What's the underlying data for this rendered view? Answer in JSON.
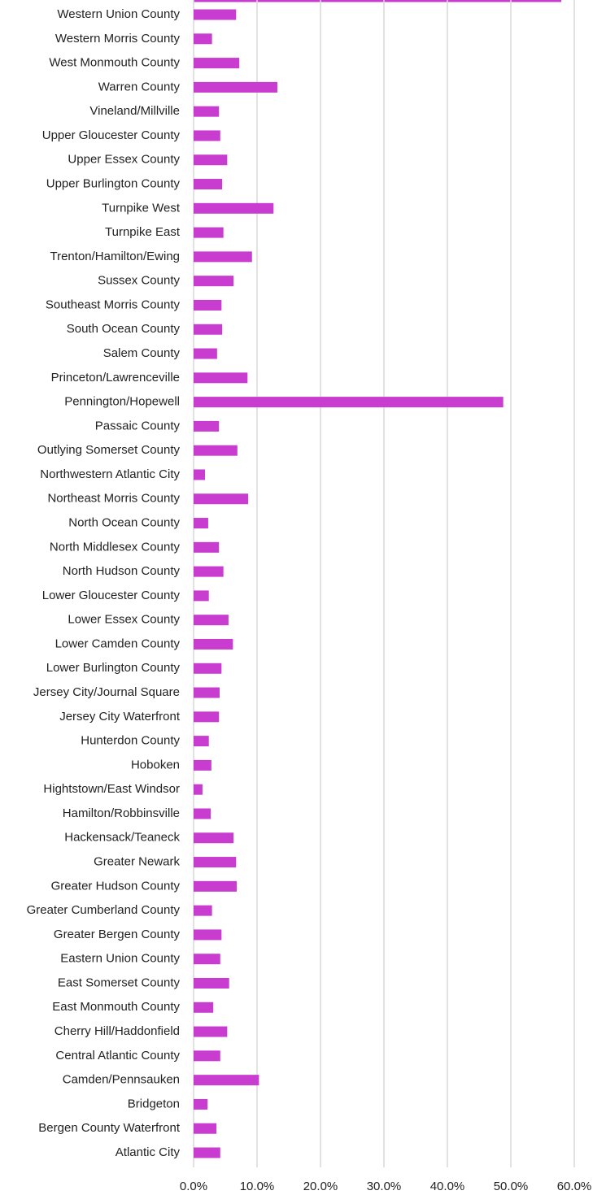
{
  "chart_data": {
    "type": "barh",
    "color": "#c83cd0",
    "categories": [
      "Western Union County",
      "Western Morris County",
      "West Monmouth County",
      "Warren County",
      "Vineland/Millville",
      "Upper Gloucester County",
      "Upper Essex County",
      "Upper Burlington County",
      "Turnpike West",
      "Turnpike East",
      "Trenton/Hamilton/Ewing",
      "Sussex County",
      "Southeast Morris County",
      "South Ocean County",
      "Salem County",
      "Princeton/Lawrenceville",
      "Pennington/Hopewell",
      "Passaic County",
      "Outlying Somerset County",
      "Northwestern Atlantic City",
      "Northeast Morris County",
      "North Ocean County",
      "North Middlesex County",
      "North Hudson County",
      "Lower Gloucester County",
      "Lower Essex County",
      "Lower Camden County",
      "Lower Burlington County",
      "Jersey City/Journal Square",
      "Jersey City Waterfront",
      "Hunterdon County",
      "Hoboken",
      "Hightstown/East Windsor",
      "Hamilton/Robbinsville",
      "Hackensack/Teaneck",
      "Greater Newark",
      "Greater Hudson County",
      "Greater Cumberland County",
      "Greater Bergen County",
      "Eastern Union County",
      "East Somerset County",
      "East Monmouth County",
      "Cherry Hill/Haddonfield",
      "Central Atlantic County",
      "Camden/Pennsauken",
      "Bridgeton",
      "Bergen County Waterfront",
      "Atlantic City"
    ],
    "values": [
      6.7,
      2.9,
      7.2,
      13.2,
      4.0,
      4.2,
      5.3,
      4.5,
      12.6,
      4.7,
      9.2,
      6.3,
      4.4,
      4.5,
      3.7,
      8.5,
      48.8,
      4.0,
      6.9,
      1.8,
      8.6,
      2.3,
      4.0,
      4.7,
      2.4,
      5.5,
      6.2,
      4.4,
      4.1,
      4.0,
      2.4,
      2.8,
      1.4,
      2.7,
      6.3,
      6.7,
      6.8,
      2.9,
      4.4,
      4.2,
      5.6,
      3.1,
      5.3,
      4.2,
      10.3,
      2.2,
      3.6,
      4.2
    ],
    "xlim": [
      0,
      60
    ],
    "xticks": [
      {
        "value": 0,
        "label": "0.0%"
      },
      {
        "value": 10,
        "label": "10.0%"
      },
      {
        "value": 20,
        "label": "20.0%"
      },
      {
        "value": 30,
        "label": "30.0%"
      },
      {
        "value": 40,
        "label": "40.0%"
      },
      {
        "value": 50,
        "label": "50.0%"
      },
      {
        "value": 60,
        "label": "60.0%"
      }
    ],
    "grid": true
  }
}
